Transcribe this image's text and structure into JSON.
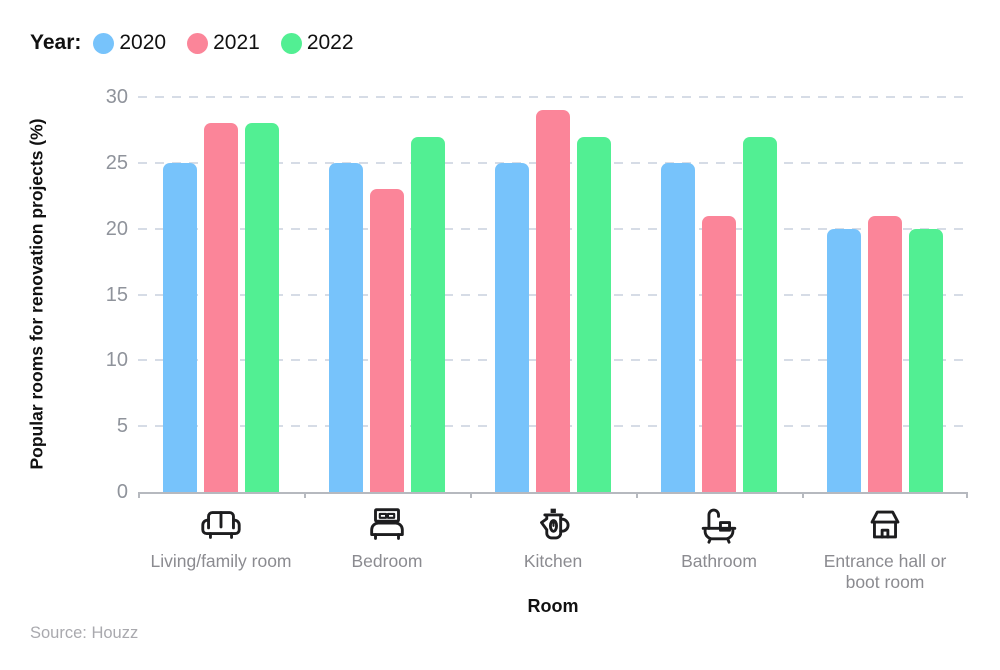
{
  "legend": {
    "title": "Year:"
  },
  "chart_data": {
    "type": "bar",
    "title": "",
    "ylabel": "Popular rooms for renovation projects (%)",
    "xlabel": "Room",
    "ylim": [
      0,
      30
    ],
    "yticks": [
      0,
      5,
      10,
      15,
      20,
      25,
      30
    ],
    "grid": "horizontal-dashed",
    "legend_position": "top-left",
    "categories": [
      {
        "label": "Living/family room",
        "icon": "sofa-icon"
      },
      {
        "label": "Bedroom",
        "icon": "bed-icon"
      },
      {
        "label": "Kitchen",
        "icon": "kettle-icon"
      },
      {
        "label": "Bathroom",
        "icon": "bathtub-icon"
      },
      {
        "label": "Entrance hall or boot room",
        "icon": "house-icon"
      }
    ],
    "series": [
      {
        "name": "2020",
        "color": "#77C3FB",
        "values": [
          25,
          25,
          25,
          25,
          20
        ]
      },
      {
        "name": "2021",
        "color": "#FB8599",
        "values": [
          28,
          23,
          29,
          21,
          21
        ]
      },
      {
        "name": "2022",
        "color": "#52EF93",
        "values": [
          28,
          27,
          27,
          27,
          20
        ]
      }
    ]
  },
  "source": "Source: Houzz"
}
